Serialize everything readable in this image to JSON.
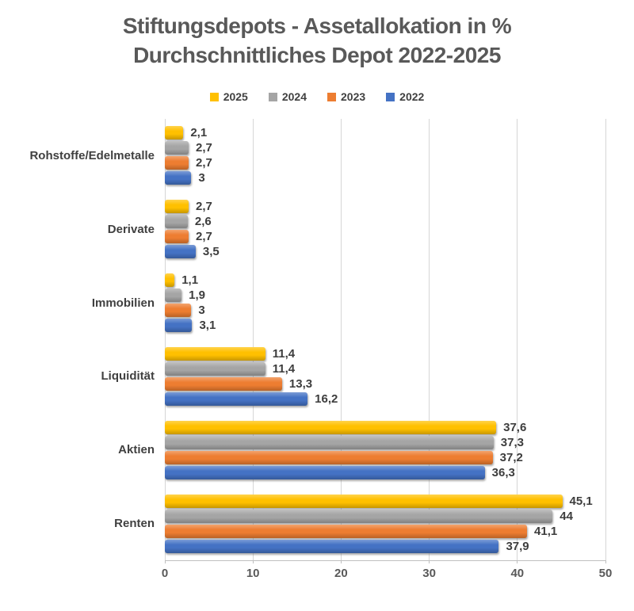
{
  "chart_data": {
    "type": "bar",
    "orientation": "horizontal",
    "title": "Stiftungsdepots - Assetallokation in %",
    "subtitle": "Durchschnittliches Depot 2022-2025",
    "categories": [
      "Rohstoffe/Edelmetalle",
      "Derivate",
      "Immobilien",
      "Liquidität",
      "Aktien",
      "Renten"
    ],
    "series": [
      {
        "name": "2025",
        "color": "#FFC000",
        "values": [
          2.1,
          2.7,
          1.1,
          11.4,
          37.6,
          45.1
        ],
        "labels": [
          "2,1",
          "2,7",
          "1,1",
          "11,4",
          "37,6",
          "45,1"
        ]
      },
      {
        "name": "2024",
        "color": "#A5A5A5",
        "values": [
          2.7,
          2.6,
          1.9,
          11.4,
          37.3,
          44
        ],
        "labels": [
          "2,7",
          "2,6",
          "1,9",
          "11,4",
          "37,3",
          "44"
        ]
      },
      {
        "name": "2023",
        "color": "#ED7D31",
        "values": [
          2.7,
          2.7,
          3,
          13.3,
          37.2,
          41.1
        ],
        "labels": [
          "2,7",
          "2,7",
          "3",
          "13,3",
          "37,2",
          "41,1"
        ]
      },
      {
        "name": "2022",
        "color": "#4472C4",
        "values": [
          3,
          3.5,
          3.1,
          16.2,
          36.3,
          37.9
        ],
        "labels": [
          "3",
          "3,5",
          "3,1",
          "16,2",
          "36,3",
          "37,9"
        ]
      }
    ],
    "x_axis": {
      "min": 0,
      "max": 50,
      "tick_labels": [
        "0",
        "10",
        "20",
        "30",
        "40",
        "50"
      ]
    },
    "legend": {
      "position": "top"
    },
    "gridlines": true,
    "title_color": "#595959",
    "label_color": "#404040"
  }
}
